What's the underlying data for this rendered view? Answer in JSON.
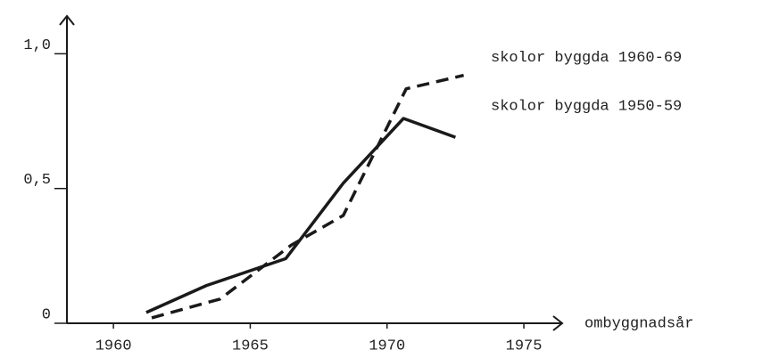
{
  "chart_data": {
    "type": "line",
    "x_label": "ombyggnadsår",
    "series": [
      {
        "name": "skolor byggda 1960-69",
        "color": "#1a1a1a",
        "dashed": true,
        "x": [
          1961.4,
          1963.9,
          1966.5,
          1968.4,
          1970.7,
          1972.8
        ],
        "values": [
          0.02,
          0.09,
          0.29,
          0.4,
          0.87,
          0.92
        ]
      },
      {
        "name": "skolor byggda 1950-59",
        "color": "#1a1a1a",
        "dashed": false,
        "x": [
          1961.2,
          1963.4,
          1966.3,
          1968.4,
          1970.6,
          1972.5
        ],
        "values": [
          0.04,
          0.14,
          0.24,
          0.52,
          0.76,
          0.69
        ]
      }
    ],
    "xlim": [
      1958.3,
      1976.4
    ],
    "xticks": [
      1960,
      1965,
      1970,
      1975
    ],
    "ylim": [
      0,
      1.14
    ],
    "yticks": [
      0,
      {
        "value": 0.5,
        "label": "0,5"
      },
      {
        "value": 1,
        "label": "1,0"
      }
    ]
  }
}
